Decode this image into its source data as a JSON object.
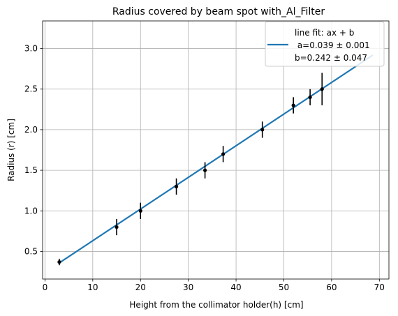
{
  "chart_data": {
    "type": "scatter",
    "title": "Radius covered by beam spot with_Al_Filter",
    "xlabel": "Height from the  collimator holder(h) [cm]",
    "ylabel": "Radius (r) [cm]",
    "xlim": [
      -0.5,
      72
    ],
    "ylim": [
      0.16,
      3.34
    ],
    "xticks": [
      0,
      10,
      20,
      30,
      40,
      50,
      60,
      70
    ],
    "yticks": [
      0.5,
      1.0,
      1.5,
      2.0,
      2.5,
      3.0
    ],
    "xtick_labels": [
      "0",
      "10",
      "20",
      "30",
      "40",
      "50",
      "60",
      "70"
    ],
    "ytick_labels": [
      "0.5",
      "1.0",
      "1.5",
      "2.0",
      "2.5",
      "3.0"
    ],
    "grid": true,
    "legend_position": "top-right",
    "series": [
      {
        "kind": "errorbar",
        "color": "#000000",
        "x": [
          3,
          15,
          20,
          27.5,
          33.5,
          37.3,
          45.5,
          52,
          55.5,
          58
        ],
        "y": [
          0.37,
          0.8,
          1.0,
          1.3,
          1.5,
          1.7,
          2.0,
          2.3,
          2.4,
          2.5
        ],
        "yerr": [
          0.04,
          0.1,
          0.1,
          0.1,
          0.1,
          0.1,
          0.1,
          0.1,
          0.1,
          0.2
        ]
      },
      {
        "kind": "fit-line",
        "color": "#1f77b4",
        "x": [
          3,
          68.5
        ],
        "y": [
          0.359,
          2.914
        ]
      }
    ],
    "legend": {
      "lines": [
        "line fit: ax + b",
        " a=0.039 ± 0.001",
        "b=0.242 ± 0.047"
      ]
    }
  }
}
